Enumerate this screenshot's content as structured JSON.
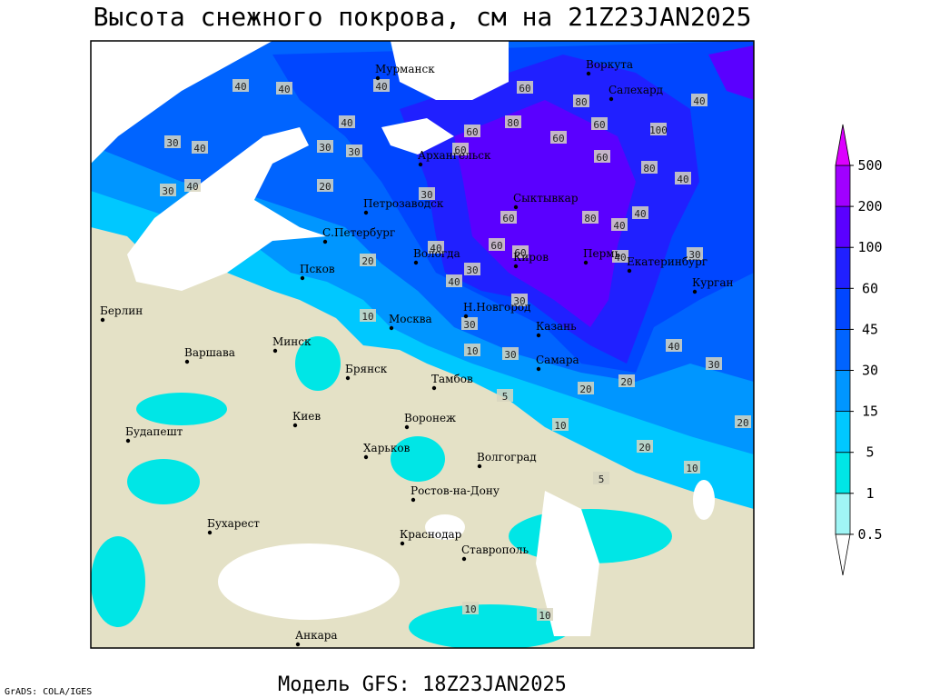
{
  "header": {
    "title": "Высота снежного покрова, см на 21Z23JAN2025"
  },
  "footer": {
    "model": "Модель GFS: 18Z23JAN2025",
    "credit": "GrADS: COLA/IGES"
  },
  "cities": [
    "Мурманск",
    "Воркута",
    "Салехард",
    "Архангельск",
    "Сыктывкар",
    "Петрозаводск",
    "С.Петербург",
    "Вологда",
    "Киров",
    "Пермь",
    "Екатеринбург",
    "Курган",
    "Псков",
    "Н.Новгород",
    "Казань",
    "Москва",
    "Берлин",
    "Варшава",
    "Минск",
    "Брянск",
    "Тамбов",
    "Самара",
    "Киев",
    "Воронеж",
    "Харьков",
    "Волгоград",
    "Будапешт",
    "Ростов-на-Дону",
    "Бухарест",
    "Краснодар",
    "Ставрополь",
    "Анкара"
  ],
  "contour_labels": [
    40,
    40,
    30,
    40,
    30,
    40,
    40,
    30,
    20,
    30,
    40,
    60,
    60,
    60,
    80,
    60,
    80,
    60,
    60,
    100,
    80,
    40,
    40,
    80,
    40,
    40,
    60,
    30,
    40,
    40,
    20,
    30,
    60,
    60,
    40,
    30,
    10,
    10,
    30,
    30,
    5,
    30,
    20,
    20,
    40,
    30,
    10,
    20,
    20,
    10,
    5,
    10,
    10
  ],
  "legend": {
    "levels": [
      0.5,
      1,
      5,
      15,
      30,
      45,
      60,
      100,
      200,
      500
    ],
    "colors": [
      "#ffffff",
      "#a0f5f5",
      "#00e6e6",
      "#00c8ff",
      "#0096ff",
      "#0064ff",
      "#0046ff",
      "#2020ff",
      "#5a00ff",
      "#a000ff",
      "#dc00ff"
    ]
  }
}
